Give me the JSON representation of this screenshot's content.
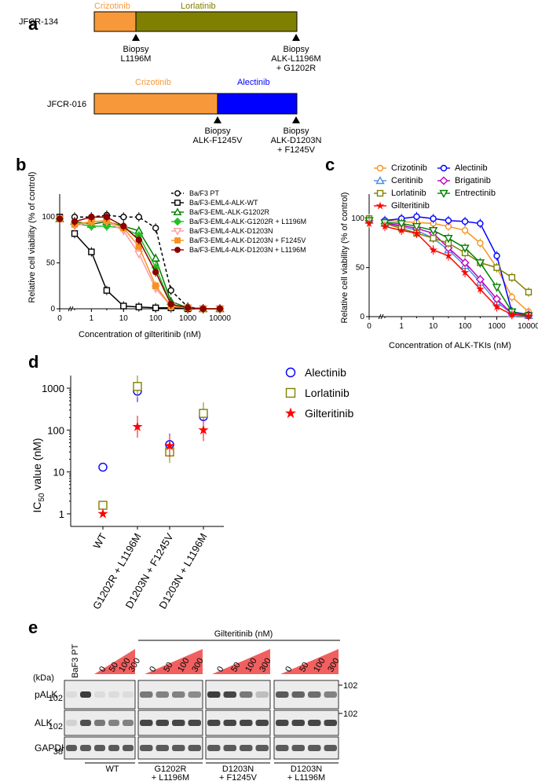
{
  "panel_a": {
    "label": "a",
    "patients": [
      {
        "id": "JFCR-134",
        "bars": [
          {
            "drug": "Crizotinib",
            "color": "#f7993a",
            "text_color": "#f7993a"
          },
          {
            "drug": "Lorlatinib",
            "color": "#808000",
            "text_color": "#808000"
          }
        ],
        "biopsies": [
          {
            "line1": "Biopsy",
            "line2": "L1196M",
            "line3": ""
          },
          {
            "line1": "Biopsy",
            "line2": "ALK-L1196M",
            "line3": "+ G1202R"
          }
        ]
      },
      {
        "id": "JFCR-016",
        "bars": [
          {
            "drug": "Crizotinib",
            "color": "#f7993a",
            "text_color": "#f7993a"
          },
          {
            "drug": "Alectinib",
            "color": "#0000ff",
            "text_color": "#0000ff"
          }
        ],
        "biopsies": [
          {
            "line1": "Biopsy",
            "line2": "ALK-F1245V",
            "line3": ""
          },
          {
            "line1": "Biopsy",
            "line2": "ALK-D1203N",
            "line3": "+ F1245V"
          }
        ]
      }
    ]
  },
  "panel_b": {
    "label": "b",
    "ylabel": "Relative cell viability (% of control)",
    "xlabel": "Concentration of gilteritinib (nM)",
    "yticks": [
      "0",
      "50",
      "100"
    ],
    "xticks": [
      "0",
      "1",
      "10",
      "100",
      "1000",
      "10000"
    ],
    "legend": [
      "Ba/F3 PT",
      "Ba/F3-EML4-ALK-WT",
      "Ba/F3-EML-ALK-G1202R",
      "Ba/F3-EML4-ALK-G1202R + L1196M",
      "Ba/F3-EML4-ALK-D1203N",
      "Ba/F3-EML4-ALK-D1203N + F1245V",
      "Ba/F3-EML4-ALK-D1203N + L1196M"
    ]
  },
  "panel_c": {
    "label": "c",
    "ylabel": "Relative cell viability (% of control)",
    "xlabel": "Concentration of ALK-TKIs (nM)",
    "yticks": [
      "0",
      "50",
      "100"
    ],
    "xticks": [
      "0",
      "1",
      "10",
      "100",
      "1000",
      "10000"
    ],
    "legend": [
      "Crizotinib",
      "Alectinib",
      "Ceritinib",
      "Brigatinib",
      "Lorlatinib",
      "Entrectinib",
      "Gilteritinib"
    ]
  },
  "panel_d": {
    "label": "d",
    "ylabel_main": "IC",
    "ylabel_sub": "50",
    "ylabel_rest": " value (nM)",
    "yticks": [
      "1",
      "10",
      "100",
      "1000"
    ],
    "categories": [
      "WT",
      "G1202R + L1196M",
      "D1203N + F1245V",
      "D1203N + L1196M"
    ],
    "legend": [
      "Alectinib",
      "Lorlatinib",
      "Gilteritinib"
    ]
  },
  "panel_e": {
    "label": "e",
    "treatment": "Gilteritinib (nM)",
    "pt_label": "BaF3 PT",
    "doses": [
      "0",
      "50",
      "100",
      "300"
    ],
    "kda": "(kDa)",
    "rows": [
      {
        "name": "pALK",
        "mw": "102"
      },
      {
        "name": "ALK",
        "mw": "102"
      },
      {
        "name": "GAPDH",
        "mw": "38"
      }
    ],
    "right_mw": [
      "102",
      "102"
    ],
    "groups": [
      {
        "line1": "WT",
        "line2": ""
      },
      {
        "line1": "G1202R",
        "line2": "+ L1196M"
      },
      {
        "line1": "D1203N",
        "line2": "+ F1245V"
      },
      {
        "line1": "D1203N",
        "line2": "+ L1196M"
      }
    ]
  },
  "chart_data": [
    {
      "type": "line",
      "title": "b",
      "xlabel": "Concentration of gilteritinib (nM)",
      "ylabel": "Relative cell viability (% of control)",
      "x": [
        0,
        0.3,
        1,
        3,
        10,
        30,
        100,
        300,
        1000,
        3000,
        10000
      ],
      "ylim": [
        0,
        125
      ],
      "series": [
        {
          "name": "Ba/F3 PT",
          "color": "#000000",
          "marker": "circle-open",
          "dashed": true,
          "values": [
            100,
            100,
            100,
            102,
            100,
            100,
            88,
            20,
            2,
            0,
            0
          ]
        },
        {
          "name": "Ba/F3-EML4-ALK-WT",
          "color": "#000000",
          "marker": "square-open",
          "dashed": false,
          "values": [
            100,
            82,
            62,
            20,
            3,
            2,
            1,
            1,
            0,
            0,
            0
          ]
        },
        {
          "name": "Ba/F3-EML-ALK-G1202R",
          "color": "#007a00",
          "marker": "triangle-open",
          "dashed": false,
          "values": [
            98,
            95,
            92,
            95,
            90,
            85,
            55,
            8,
            1,
            0,
            0
          ]
        },
        {
          "name": "Ba/F3-EML4-ALK-G1202R + L1196M",
          "color": "#22c022",
          "marker": "diamond",
          "dashed": false,
          "values": [
            98,
            93,
            90,
            90,
            88,
            80,
            45,
            5,
            1,
            0,
            0
          ]
        },
        {
          "name": "Ba/F3-EML4-ALK-D1203N",
          "color": "#ff9aa8",
          "marker": "triangle-down-open",
          "dashed": false,
          "values": [
            98,
            90,
            95,
            95,
            85,
            60,
            22,
            3,
            1,
            0,
            0
          ]
        },
        {
          "name": "Ba/F3-EML4-ALK-D1203N + F1245V",
          "color": "#f7931e",
          "marker": "square",
          "dashed": false,
          "values": [
            98,
            92,
            95,
            96,
            88,
            68,
            25,
            3,
            1,
            0,
            0
          ]
        },
        {
          "name": "Ba/F3-EML4-ALK-D1203N + L1196M",
          "color": "#8b0000",
          "marker": "circle",
          "dashed": false,
          "values": [
            98,
            95,
            100,
            100,
            90,
            75,
            40,
            5,
            1,
            0,
            0
          ]
        }
      ]
    },
    {
      "type": "line",
      "title": "c",
      "xlabel": "Concentration of ALK-TKIs (nM)",
      "ylabel": "Relative cell viability (% of control)",
      "x": [
        0,
        0.3,
        1,
        3,
        10,
        30,
        100,
        300,
        1000,
        3000,
        10000
      ],
      "ylim": [
        0,
        125
      ],
      "series": [
        {
          "name": "Crizotinib",
          "color": "#f7931e",
          "marker": "circle-open",
          "values": [
            100,
            98,
            97,
            96,
            95,
            92,
            88,
            75,
            50,
            20,
            5
          ]
        },
        {
          "name": "Alectinib",
          "color": "#0000ff",
          "marker": "circle-open",
          "values": [
            100,
            98,
            100,
            102,
            100,
            98,
            97,
            95,
            62,
            5,
            2
          ]
        },
        {
          "name": "Ceritinib",
          "color": "#4a90e2",
          "marker": "triangle-open",
          "values": [
            98,
            95,
            92,
            88,
            80,
            68,
            52,
            35,
            15,
            3,
            1
          ]
        },
        {
          "name": "Brigatinib",
          "color": "#c000c0",
          "marker": "diamond-open",
          "values": [
            98,
            95,
            93,
            90,
            85,
            70,
            55,
            38,
            18,
            3,
            1
          ]
        },
        {
          "name": "Lorlatinib",
          "color": "#808000",
          "marker": "square-open",
          "values": [
            100,
            95,
            90,
            85,
            80,
            75,
            65,
            55,
            50,
            40,
            25
          ]
        },
        {
          "name": "Entrectinib",
          "color": "#008000",
          "marker": "triangle-down-open",
          "values": [
            98,
            96,
            95,
            92,
            88,
            80,
            70,
            55,
            30,
            5,
            1
          ]
        },
        {
          "name": "Gilteritinib",
          "color": "#ff0000",
          "marker": "star",
          "values": [
            95,
            92,
            88,
            85,
            68,
            62,
            45,
            28,
            10,
            2,
            1
          ]
        }
      ]
    },
    {
      "type": "scatter",
      "title": "d",
      "ylabel": "IC50 value (nM)",
      "categories": [
        "WT",
        "G1202R + L1196M",
        "D1203N + F1245V",
        "D1203N + L1196M"
      ],
      "ylim": [
        0.5,
        2000
      ],
      "yscale": "log",
      "series": [
        {
          "name": "Alectinib",
          "color": "#0000ff",
          "marker": "circle-open",
          "values": [
            13,
            850,
            45,
            210
          ]
        },
        {
          "name": "Lorlatinib",
          "color": "#808000",
          "marker": "square-open",
          "values": [
            1.6,
            1100,
            30,
            250
          ]
        },
        {
          "name": "Gilteritinib",
          "color": "#ff0000",
          "marker": "star",
          "values": [
            1,
            120,
            42,
            100
          ]
        }
      ]
    }
  ]
}
